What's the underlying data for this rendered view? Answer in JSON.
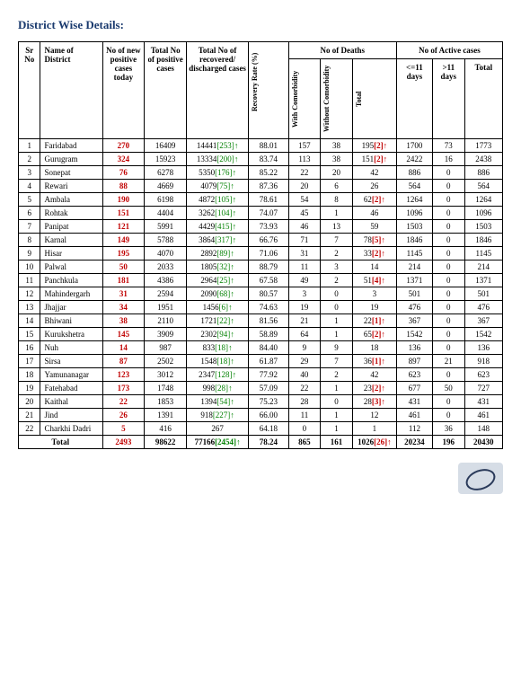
{
  "title": "District Wise Details:",
  "headers": {
    "sr": "Sr No",
    "district": "Name of District",
    "new_pos": "No of new positive cases today",
    "total_pos": "Total No of positive cases",
    "recovered": "Total No of recovered/ discharged cases",
    "recovery_rate": "Recovery Rate (%)",
    "deaths_group": "No of Deaths",
    "with_co": "With Comorbidity",
    "without_co": "Without Comorbidity",
    "deaths_total": "Total",
    "active_group": "No of Active cases",
    "le11": "<=11 days",
    "gt11": ">11 days",
    "active_total": "Total"
  },
  "rows": [
    {
      "sr": 1,
      "d": "Faridabad",
      "np": "270",
      "tp": "16409",
      "rc": "14441",
      "rc_b": "[253]",
      "rr": "88.01",
      "wc": "157",
      "woc": "38",
      "dt": "195",
      "dt_b": "[2]",
      "le": "1700",
      "gt": "73",
      "at": "1773"
    },
    {
      "sr": 2,
      "d": "Gurugram",
      "np": "324",
      "tp": "15923",
      "rc": "13334",
      "rc_b": "[200]",
      "rr": "83.74",
      "wc": "113",
      "woc": "38",
      "dt": "151",
      "dt_b": "[2]",
      "le": "2422",
      "gt": "16",
      "at": "2438"
    },
    {
      "sr": 3,
      "d": "Sonepat",
      "np": "76",
      "tp": "6278",
      "rc": "5350",
      "rc_b": "[176]",
      "rr": "85.22",
      "wc": "22",
      "woc": "20",
      "dt": "42",
      "dt_b": "",
      "le": "886",
      "gt": "0",
      "at": "886"
    },
    {
      "sr": 4,
      "d": "Rewari",
      "np": "88",
      "tp": "4669",
      "rc": "4079",
      "rc_b": "[75]",
      "rr": "87.36",
      "wc": "20",
      "woc": "6",
      "dt": "26",
      "dt_b": "",
      "le": "564",
      "gt": "0",
      "at": "564"
    },
    {
      "sr": 5,
      "d": "Ambala",
      "np": "190",
      "tp": "6198",
      "rc": "4872",
      "rc_b": "[105]",
      "rr": "78.61",
      "wc": "54",
      "woc": "8",
      "dt": "62",
      "dt_b": "[2]",
      "le": "1264",
      "gt": "0",
      "at": "1264"
    },
    {
      "sr": 6,
      "d": "Rohtak",
      "np": "151",
      "tp": "4404",
      "rc": "3262",
      "rc_b": "[104]",
      "rr": "74.07",
      "wc": "45",
      "woc": "1",
      "dt": "46",
      "dt_b": "",
      "le": "1096",
      "gt": "0",
      "at": "1096"
    },
    {
      "sr": 7,
      "d": "Panipat",
      "np": "121",
      "tp": "5991",
      "rc": "4429",
      "rc_b": "[415]",
      "rr": "73.93",
      "wc": "46",
      "woc": "13",
      "dt": "59",
      "dt_b": "",
      "le": "1503",
      "gt": "0",
      "at": "1503"
    },
    {
      "sr": 8,
      "d": "Karnal",
      "np": "149",
      "tp": "5788",
      "rc": "3864",
      "rc_b": "[317]",
      "rr": "66.76",
      "wc": "71",
      "woc": "7",
      "dt": "78",
      "dt_b": "[5]",
      "le": "1846",
      "gt": "0",
      "at": "1846"
    },
    {
      "sr": 9,
      "d": "Hisar",
      "np": "195",
      "tp": "4070",
      "rc": "2892",
      "rc_b": "[89]",
      "rr": "71.06",
      "wc": "31",
      "woc": "2",
      "dt": "33",
      "dt_b": "[2]",
      "le": "1145",
      "gt": "0",
      "at": "1145"
    },
    {
      "sr": 10,
      "d": "Palwal",
      "np": "50",
      "tp": "2033",
      "rc": "1805",
      "rc_b": "[32]",
      "rr": "88.79",
      "wc": "11",
      "woc": "3",
      "dt": "14",
      "dt_b": "",
      "le": "214",
      "gt": "0",
      "at": "214"
    },
    {
      "sr": 11,
      "d": "Panchkula",
      "np": "181",
      "tp": "4386",
      "rc": "2964",
      "rc_b": "[25]",
      "rr": "67.58",
      "wc": "49",
      "woc": "2",
      "dt": "51",
      "dt_b": "[4]",
      "le": "1371",
      "gt": "0",
      "at": "1371"
    },
    {
      "sr": 12,
      "d": "Mahindergarh",
      "np": "31",
      "tp": "2594",
      "rc": "2090",
      "rc_b": "[68]",
      "rr": "80.57",
      "wc": "3",
      "woc": "0",
      "dt": "3",
      "dt_b": "",
      "le": "501",
      "gt": "0",
      "at": "501"
    },
    {
      "sr": 13,
      "d": "Jhajjar",
      "np": "34",
      "tp": "1951",
      "rc": "1456",
      "rc_b": "[6]",
      "rr": "74.63",
      "wc": "19",
      "woc": "0",
      "dt": "19",
      "dt_b": "",
      "le": "476",
      "gt": "0",
      "at": "476"
    },
    {
      "sr": 14,
      "d": "Bhiwani",
      "np": "38",
      "tp": "2110",
      "rc": "1721",
      "rc_b": "[22]",
      "rr": "81.56",
      "wc": "21",
      "woc": "1",
      "dt": "22",
      "dt_b": "[1]",
      "le": "367",
      "gt": "0",
      "at": "367"
    },
    {
      "sr": 15,
      "d": "Kurukshetra",
      "np": "145",
      "tp": "3909",
      "rc": "2302",
      "rc_b": "[94]",
      "rr": "58.89",
      "wc": "64",
      "woc": "1",
      "dt": "65",
      "dt_b": "[2]",
      "le": "1542",
      "gt": "0",
      "at": "1542"
    },
    {
      "sr": 16,
      "d": "Nuh",
      "np": "14",
      "tp": "987",
      "rc": "833",
      "rc_b": "[18]",
      "rr": "84.40",
      "wc": "9",
      "woc": "9",
      "dt": "18",
      "dt_b": "",
      "le": "136",
      "gt": "0",
      "at": "136"
    },
    {
      "sr": 17,
      "d": "Sirsa",
      "np": "87",
      "tp": "2502",
      "rc": "1548",
      "rc_b": "[18]",
      "rr": "61.87",
      "wc": "29",
      "woc": "7",
      "dt": "36",
      "dt_b": "[1]",
      "le": "897",
      "gt": "21",
      "at": "918"
    },
    {
      "sr": 18,
      "d": "Yamunanagar",
      "np": "123",
      "tp": "3012",
      "rc": "2347",
      "rc_b": "[128]",
      "rr": "77.92",
      "wc": "40",
      "woc": "2",
      "dt": "42",
      "dt_b": "",
      "le": "623",
      "gt": "0",
      "at": "623"
    },
    {
      "sr": 19,
      "d": "Fatehabad",
      "np": "173",
      "tp": "1748",
      "rc": "998",
      "rc_b": "[28]",
      "rr": "57.09",
      "wc": "22",
      "woc": "1",
      "dt": "23",
      "dt_b": "[2]",
      "le": "677",
      "gt": "50",
      "at": "727"
    },
    {
      "sr": 20,
      "d": "Kaithal",
      "np": "22",
      "tp": "1853",
      "rc": "1394",
      "rc_b": "[54]",
      "rr": "75.23",
      "wc": "28",
      "woc": "0",
      "dt": "28",
      "dt_b": "[3]",
      "le": "431",
      "gt": "0",
      "at": "431"
    },
    {
      "sr": 21,
      "d": "Jind",
      "np": "26",
      "tp": "1391",
      "rc": "918",
      "rc_b": "[227]",
      "rr": "66.00",
      "wc": "11",
      "woc": "1",
      "dt": "12",
      "dt_b": "",
      "le": "461",
      "gt": "0",
      "at": "461"
    },
    {
      "sr": 22,
      "d": "Charkhi Dadri",
      "np": "5",
      "tp": "416",
      "rc": "267",
      "rc_b": "",
      "rr": "64.18",
      "wc": "0",
      "woc": "1",
      "dt": "1",
      "dt_b": "",
      "le": "112",
      "gt": "36",
      "at": "148"
    }
  ],
  "total": {
    "label": "Total",
    "np": "2493",
    "tp": "98622",
    "rc": "77166",
    "rc_b": "[2454]",
    "rr": "78.24",
    "wc": "865",
    "woc": "161",
    "dt": "1026",
    "dt_b": "[26]",
    "le": "20234",
    "gt": "196",
    "at": "20430"
  },
  "colors": {
    "red": "#c00000",
    "green": "#008000",
    "blue": "#0000cc",
    "title": "#1a3a6e"
  }
}
